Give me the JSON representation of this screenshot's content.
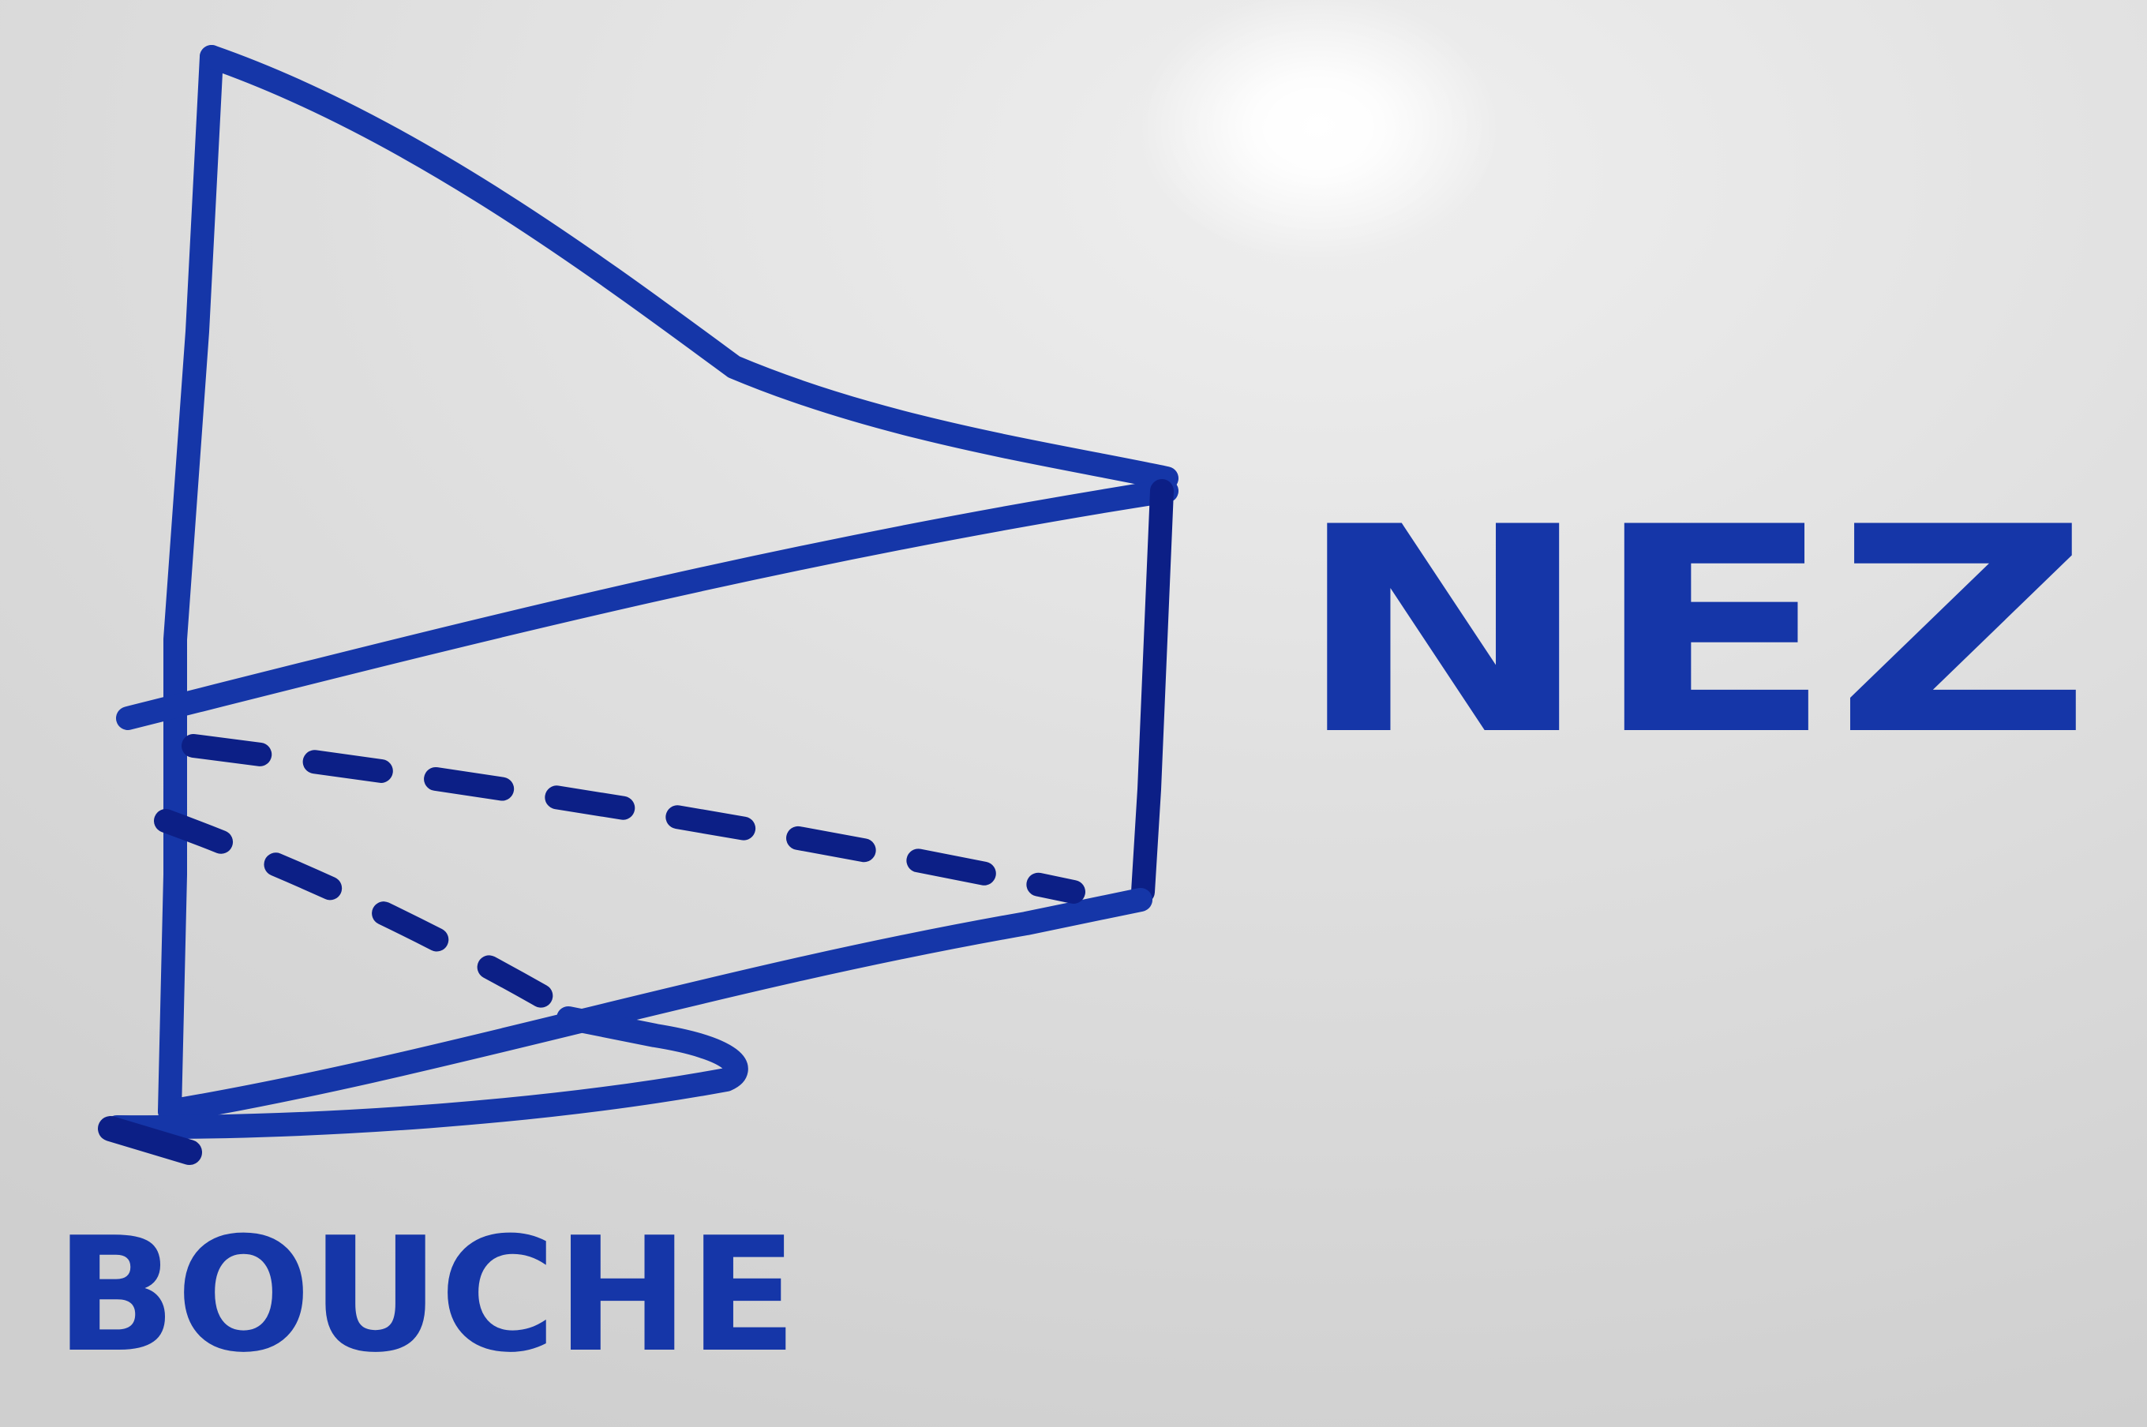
{
  "labels": {
    "nose": "NEZ",
    "mouth": "BOUCHE"
  },
  "colors": {
    "ink": "#1536a8",
    "ink_dark": "#0c1f86",
    "board": "#dcdcdc",
    "glare": "#ffffff"
  }
}
